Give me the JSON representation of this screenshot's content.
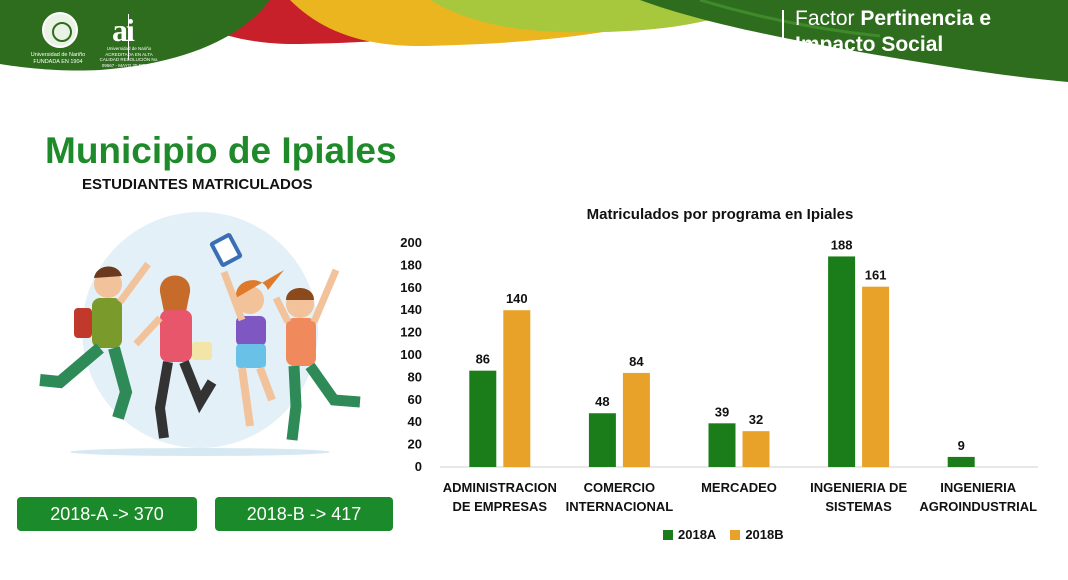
{
  "header": {
    "university_line1": "Universidad de Nariño",
    "university_line2": "FUNDADA EN 1904",
    "ai_mark": "ai",
    "ai_sub": "Universidad de Nariño ACREDITADA EN ALTA CALIDAD RESOLUCIÓN No. 09567 - MAYO 25 DE 2017",
    "factor_light": "Factor ",
    "factor_bold_1": "Pertinencia e",
    "factor_bold_2": "Impacto Social"
  },
  "title": "Municipio de Ipiales",
  "subtitle": "ESTUDIANTES MATRICULADOS",
  "summary": {
    "box_a": "2018-A -> 370",
    "box_b": "2018-B ->  417"
  },
  "colors": {
    "green_dark": "#2f6d1e",
    "green_title": "#1f8a2a",
    "box_green": "#1b8a2a",
    "series_2018A": "#1a7d1a",
    "series_2018B": "#e8a22a",
    "header_red": "#c8202a",
    "header_yellow": "#e8b020",
    "header_lime": "#9dc43a"
  },
  "chart_data": {
    "type": "bar",
    "title": "Matriculados por programa en Ipiales",
    "categories": [
      [
        "ADMINISTRACION",
        "DE EMPRESAS"
      ],
      [
        "COMERCIO",
        "INTERNACIONAL"
      ],
      [
        "MERCADEO"
      ],
      [
        "INGENIERIA DE",
        "SISTEMAS"
      ],
      [
        "INGENIERIA",
        "AGROINDUSTRIAL"
      ]
    ],
    "series": [
      {
        "name": "2018A",
        "values": [
          86,
          48,
          39,
          188,
          9
        ]
      },
      {
        "name": "2018B",
        "values": [
          140,
          84,
          32,
          161,
          null
        ]
      }
    ],
    "ylim": [
      0,
      200
    ],
    "yticks": [
      0,
      20,
      40,
      60,
      80,
      100,
      120,
      140,
      160,
      180,
      200
    ],
    "grid": false,
    "legend": "bottom"
  }
}
